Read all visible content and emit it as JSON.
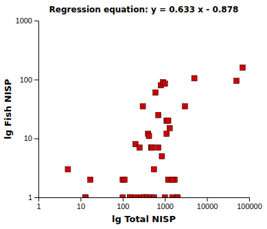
{
  "chart_data": {
    "type": "scatter",
    "title": "Regression equation: y = 0.633 x - 0.878",
    "xlabel": "lg Total NISP",
    "ylabel": "lg Fish NISP",
    "x": [
      5,
      13,
      17,
      100,
      110,
      150,
      200,
      250,
      300,
      350,
      400,
      420,
      470,
      500,
      550,
      600,
      700,
      800,
      900,
      1000,
      1100,
      1200,
      1300,
      1500,
      1700,
      2000,
      3000,
      5000,
      50000,
      70000,
      13,
      100,
      150,
      200,
      270,
      320,
      380,
      470,
      550,
      700,
      850,
      1000,
      1100,
      1200,
      1500,
      2000
    ],
    "values": [
      3,
      1,
      2,
      2,
      2,
      1,
      8,
      7,
      35,
      1,
      12,
      11,
      7,
      7,
      3,
      60,
      25,
      80,
      90,
      85,
      20,
      20,
      15,
      1,
      2,
      1,
      35,
      105,
      95,
      160,
      1,
      1,
      1,
      1,
      1,
      1,
      1,
      1,
      1,
      7,
      5,
      1,
      12,
      2,
      2,
      1
    ],
    "color": "#cc0000",
    "marker": "square",
    "xlim": [
      1,
      100000
    ],
    "ylim": [
      1,
      1000
    ],
    "xticks": [
      1,
      10,
      100,
      1000,
      10000,
      100000
    ],
    "yticks": [
      1,
      10,
      100,
      1000
    ],
    "log": true,
    "grid": false
  }
}
